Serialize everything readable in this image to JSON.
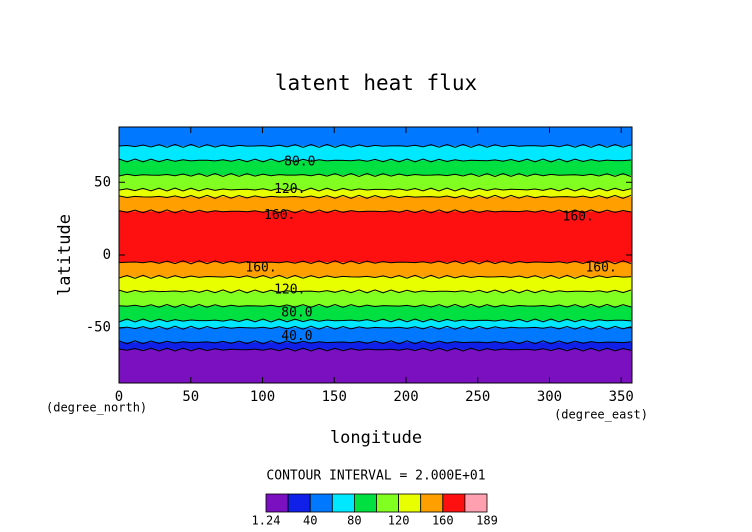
{
  "chart_data": {
    "type": "contour",
    "title": "latent heat flux",
    "x_label": "longitude",
    "y_label": "latitude",
    "x_unit": "(degree_east)",
    "y_unit": "(degree_north)",
    "xlim": [
      0,
      357.5
    ],
    "ylim": [
      -88,
      88
    ],
    "xticks": [
      0,
      50,
      100,
      150,
      200,
      250,
      300,
      350
    ],
    "yticks": [
      -50,
      0,
      50
    ],
    "lat": [
      87.5,
      82.5,
      77.5,
      72.5,
      67.5,
      62.5,
      57.5,
      52.5,
      47.5,
      42.5,
      37.5,
      32.5,
      27.5,
      22.5,
      17.5,
      12.5,
      7.5,
      2.5,
      -2.5,
      -7.5,
      -12.5,
      -17.5,
      -22.5,
      -27.5,
      -32.5,
      -37.5,
      -42.5,
      -47.5,
      -52.5,
      -57.5,
      -62.5,
      -67.5,
      -72.5,
      -77.5,
      -82.5,
      -87.5
    ],
    "values": [
      45,
      50,
      58,
      68,
      76,
      88,
      96,
      108,
      116,
      128,
      142,
      150,
      160,
      170,
      174,
      176,
      178,
      177,
      172,
      158,
      150,
      138,
      128,
      116,
      104,
      94,
      84,
      72,
      58,
      44,
      32,
      18,
      10,
      5,
      3,
      2
    ],
    "contour_interval_label": "CONTOUR INTERVAL = 2.000E+01",
    "levels": [
      1.24,
      20,
      40,
      60,
      80,
      100,
      120,
      140,
      160,
      180,
      189
    ],
    "colors": [
      "#7a10c0",
      "#1020e8",
      "#0078ff",
      "#00e8ff",
      "#00e040",
      "#80ff20",
      "#e8ff00",
      "#ffa000",
      "#ff1010",
      "#ffa0b0"
    ],
    "colorbar_ticks": [
      1.24,
      40,
      80,
      120,
      160,
      189
    ],
    "contour_labels": [
      {
        "text": "80.0",
        "x": 126,
        "y": 64
      },
      {
        "text": "120.",
        "x": 119,
        "y": 45
      },
      {
        "text": "160.",
        "x": 112,
        "y": 27
      },
      {
        "text": "160.",
        "x": 320,
        "y": 26
      },
      {
        "text": "160.",
        "x": 99,
        "y": -9
      },
      {
        "text": "160.",
        "x": 336,
        "y": -9
      },
      {
        "text": "120.",
        "x": 119,
        "y": -24
      },
      {
        "text": "80.0",
        "x": 124,
        "y": -40
      },
      {
        "text": "40.0",
        "x": 124,
        "y": -56
      }
    ]
  }
}
